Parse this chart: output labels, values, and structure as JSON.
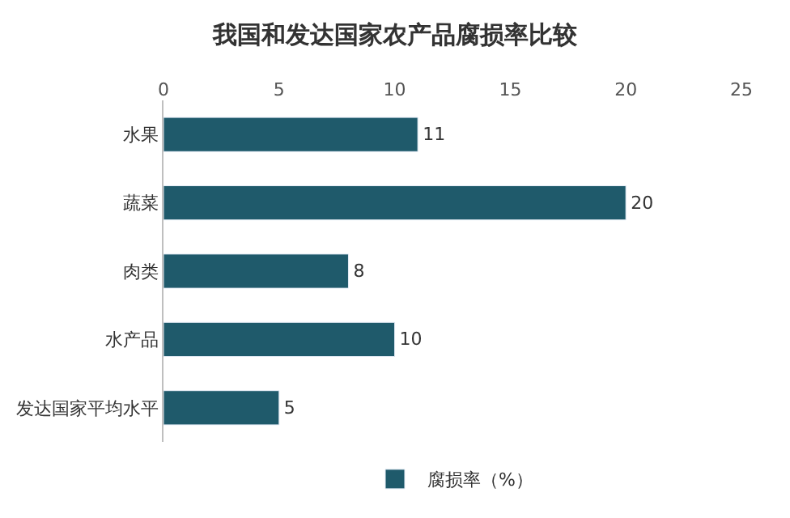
{
  "chart_data": {
    "type": "bar",
    "orientation": "horizontal",
    "title": "我国和发达国家农产品腐损率比较",
    "categories": [
      "水果",
      "蔬菜",
      "肉类",
      "水产品",
      "发达国家平均水平"
    ],
    "series": [
      {
        "name": "腐损率（%）",
        "color": "#1f5a6b",
        "values": [
          11,
          20,
          8,
          10,
          5
        ]
      }
    ],
    "xlim": [
      0,
      25
    ],
    "xticks": [
      0,
      5,
      10,
      15,
      20,
      25
    ],
    "data_labels": true,
    "grid": false,
    "legend": "bottom"
  }
}
